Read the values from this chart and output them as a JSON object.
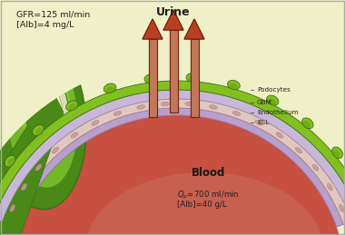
{
  "bg_color": "#f0f0c8",
  "title": "Urine",
  "blood_label": "Blood",
  "text_left_line1": "GFR=125 ml/min",
  "text_left_line2": "[Alb]=4 mg/L",
  "text_blood_qp": "$Q_p$=700 ml/min",
  "text_blood_alb": "[Alb]=40 g/L",
  "arrow_color": "#b84020",
  "arrow_shaft_color": "#c07858",
  "arrow_edge_color": "#7a2010",
  "podocyte_fill": "#82c020",
  "podocyte_dark": "#3a7010",
  "podocyte_shadow": "#5a9010",
  "gbm_color": "#c8b8d8",
  "gbm_edge": "#9880b0",
  "endothelium_color": "#e0c8c0",
  "endothelium_spot": "#c89898",
  "esl_color": "#b8a0cc",
  "esl_edge": "#9070a8",
  "blood_color1": "#c85040",
  "blood_color2": "#c87060",
  "blood_gradient": "#d49080",
  "kidney_outer": "#4a8818",
  "kidney_mid": "#72b828",
  "kidney_light": "#98d040",
  "kidney_white_outer": "#d8ddb8",
  "kidney_white_inner": "#eeeec8",
  "kidney_cavity": "#f5f5e0",
  "bg_border": "#ccccaa",
  "line_color": "#303030",
  "text_color": "#202020"
}
